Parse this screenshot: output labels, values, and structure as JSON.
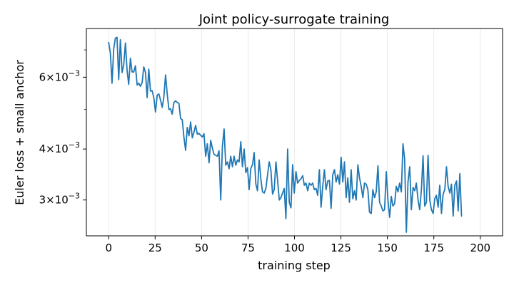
{
  "chart_data": {
    "type": "line",
    "title": "Joint policy-surrogate training",
    "xlabel": "training step",
    "ylabel": "Euler loss + small anchor",
    "xlim": [
      -12,
      212
    ],
    "ylim": [
      0.00245,
      0.0079
    ],
    "yscale": "log",
    "grid": {
      "x": true,
      "y": false
    },
    "x_ticks": [
      0,
      25,
      50,
      75,
      100,
      125,
      150,
      175,
      200
    ],
    "x_tick_labels": [
      "0",
      "25",
      "50",
      "75",
      "100",
      "125",
      "150",
      "175",
      "200"
    ],
    "y_ticks": [
      {
        "value": 0.003,
        "mantissa": "3",
        "exponent": "−3"
      },
      {
        "value": 0.004,
        "mantissa": "4",
        "exponent": "−3"
      },
      {
        "value": 0.006,
        "mantissa": "6",
        "exponent": "−3"
      }
    ],
    "y_minor_ticks": [
      0.005,
      0.007
    ],
    "line_color": "#1f77b4",
    "series": [
      {
        "values": [
          0.0073,
          0.00688,
          0.0058,
          0.00704,
          0.00748,
          0.00752,
          0.00592,
          0.00742,
          0.00616,
          0.00644,
          0.00728,
          0.00624,
          0.00576,
          0.00668,
          0.00618,
          0.00618,
          0.0064,
          0.00574,
          0.0058,
          0.0057,
          0.00582,
          0.00636,
          0.00616,
          0.00535,
          0.00628,
          0.00555,
          0.00556,
          0.00534,
          0.00493,
          0.00542,
          0.00546,
          0.00528,
          0.00506,
          0.00536,
          0.00608,
          0.00547,
          0.005,
          0.00502,
          0.00487,
          0.0052,
          0.00525,
          0.0052,
          0.00518,
          0.00475,
          0.00472,
          0.00428,
          0.00397,
          0.00452,
          0.00431,
          0.00466,
          0.00426,
          0.0044,
          0.00457,
          0.00435,
          0.00437,
          0.00432,
          0.00428,
          0.00436,
          0.00384,
          0.00412,
          0.0037,
          0.0042,
          0.00402,
          0.00388,
          0.00386,
          0.00384,
          0.00396,
          0.003,
          0.00406,
          0.00448,
          0.00365,
          0.00372,
          0.00358,
          0.00384,
          0.00362,
          0.00384,
          0.00365,
          0.00376,
          0.00372,
          0.00417,
          0.00362,
          0.004,
          0.0035,
          0.0036,
          0.00318,
          0.00358,
          0.00366,
          0.00392,
          0.00328,
          0.00316,
          0.00376,
          0.00338,
          0.00314,
          0.00312,
          0.0032,
          0.00346,
          0.00372,
          0.00356,
          0.0031,
          0.00318,
          0.00372,
          0.00336,
          0.003,
          0.00304,
          0.00312,
          0.0032,
          0.0027,
          0.004,
          0.00296,
          0.00287,
          0.00366,
          0.00312,
          0.00352,
          0.0033,
          0.00335,
          0.00338,
          0.00344,
          0.00326,
          0.0033,
          0.00316,
          0.0033,
          0.00326,
          0.0033,
          0.00318,
          0.0032,
          0.00308,
          0.00356,
          0.00288,
          0.00324,
          0.00356,
          0.00318,
          0.00334,
          0.00335,
          0.00286,
          0.00346,
          0.00356,
          0.00332,
          0.00346,
          0.00328,
          0.00382,
          0.00332,
          0.00372,
          0.00304,
          0.0034,
          0.00296,
          0.00356,
          0.00302,
          0.00316,
          0.003,
          0.00366,
          0.0034,
          0.00324,
          0.00304,
          0.0033,
          0.00328,
          0.00318,
          0.0028,
          0.00278,
          0.00318,
          0.00304,
          0.00314,
          0.00364,
          0.00296,
          0.0029,
          0.00282,
          0.00284,
          0.00352,
          0.003,
          0.00272,
          0.00306,
          0.0029,
          0.00294,
          0.00324,
          0.00314,
          0.0033,
          0.00314,
          0.00412,
          0.00378,
          0.0025,
          0.00332,
          0.00362,
          0.00284,
          0.00322,
          0.00316,
          0.0033,
          0.003,
          0.00284,
          0.00318,
          0.00385,
          0.0029,
          0.00296,
          0.00386,
          0.003,
          0.00284,
          0.00278,
          0.00302,
          0.00308,
          0.00288,
          0.00326,
          0.00278,
          0.0031,
          0.00318,
          0.00362,
          0.00324,
          0.00312,
          0.00328,
          0.00274,
          0.00326,
          0.00334,
          0.00282,
          0.00348,
          0.00274
        ],
        "x_start": 0,
        "x_step": 0.9
      }
    ]
  }
}
